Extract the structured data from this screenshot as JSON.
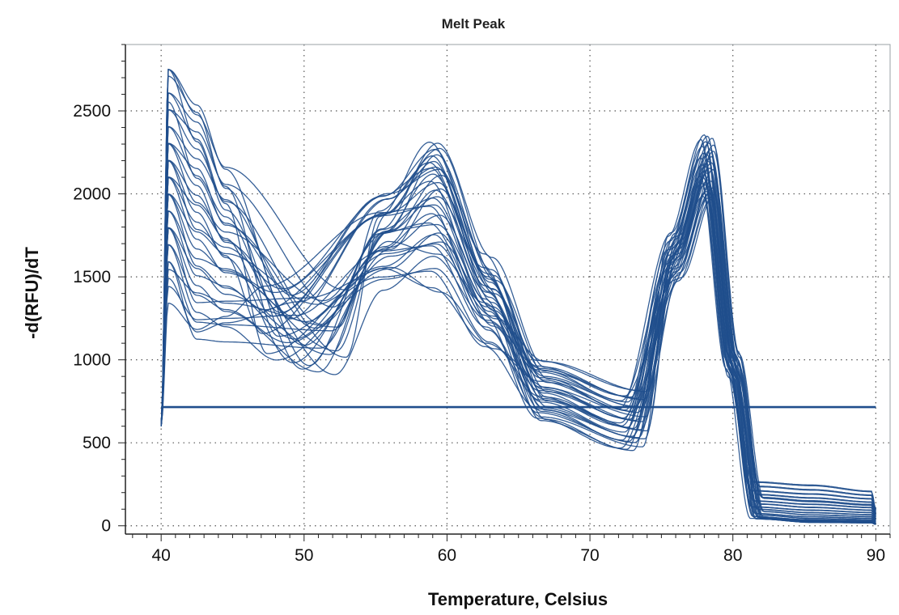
{
  "chart_data": {
    "type": "line",
    "title": "Melt Peak",
    "xlabel": "Temperature, Celsius",
    "ylabel": "-d(RFU)/dT",
    "xlim": [
      37.5,
      91
    ],
    "ylim": [
      -50,
      2900
    ],
    "xticks": [
      40,
      50,
      60,
      70,
      80,
      90
    ],
    "yticks": [
      0,
      500,
      1000,
      1500,
      2000,
      2500
    ],
    "x_tick_labels": [
      "40",
      "50",
      "60",
      "70",
      "80",
      "90"
    ],
    "y_tick_labels": [
      "0",
      "500",
      "1000",
      "1500",
      "2000",
      "2500"
    ],
    "grid": true,
    "legend": "none",
    "line_color": "#1f4e8c",
    "threshold": 715,
    "curve_count": 36,
    "curve_model": {
      "start": {
        "x": 40.0,
        "y": 600
      },
      "early_peak_x": 40.5,
      "early_peak_y_range": [
        1500,
        2750
      ],
      "plateau_x": 42.5,
      "plateau_y_range": [
        1080,
        2550
      ],
      "trough_x_range": [
        47,
        53
      ],
      "trough_y_range": [
        900,
        1450
      ],
      "peak1_x_range": [
        58.7,
        59.6
      ],
      "peak1_y_range": [
        1310,
        2330
      ],
      "valley_x_range": [
        72,
        74
      ],
      "valley_y_range": [
        450,
        820
      ],
      "peak2_x_range": [
        77.7,
        78.7
      ],
      "peak2_y_range": [
        1950,
        2360
      ],
      "tail_y_range": [
        20,
        260
      ],
      "end_x": 90.0
    }
  }
}
